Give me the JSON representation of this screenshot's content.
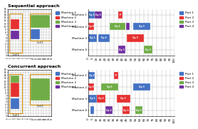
{
  "chart_data": [
    {
      "type": "layout",
      "title": "Sequential approach",
      "xlim": [
        0,
        17
      ],
      "ylim": [
        0,
        16
      ],
      "xticks": [
        0,
        1,
        2,
        3,
        4,
        5,
        6,
        7,
        8,
        9,
        10,
        11,
        12,
        13,
        14,
        15,
        16,
        17
      ],
      "yticks": [
        0,
        1,
        2,
        3,
        4,
        5,
        6,
        7,
        8,
        9,
        10,
        11,
        12,
        13,
        14,
        15,
        16
      ],
      "grid": true,
      "cells": [
        {
          "x": 0.5,
          "y": 1.0,
          "width": 5.0,
          "height": 13.5,
          "color": "#d4900a",
          "label": "Cell 1",
          "label_x": 3.0,
          "label_y": 0.8
        },
        {
          "x": 8.5,
          "y": 5.0,
          "width": 8.5,
          "height": 9.5,
          "color": "#d4900a",
          "label": "Cell 2",
          "label_x": 12.5,
          "label_y": 4.8
        }
      ],
      "boxes": [
        {
          "x": 1.0,
          "y": 9.0,
          "width": 3.5,
          "height": 3.5,
          "color": "#e63030"
        },
        {
          "x": 1.0,
          "y": 5.5,
          "width": 3.5,
          "height": 3.0,
          "color": "#7030a0"
        },
        {
          "x": 9.0,
          "y": 9.5,
          "width": 7.5,
          "height": 4.5,
          "color": "#70ad47"
        },
        {
          "x": 9.0,
          "y": 5.5,
          "width": 3.5,
          "height": 3.5,
          "color": "#4472c4"
        }
      ],
      "series": [
        {
          "name": "Machine 1",
          "color": "#4472c4"
        },
        {
          "name": "Machine 2",
          "color": "#e63030"
        },
        {
          "name": "Machine 3",
          "color": "#70ad47"
        },
        {
          "name": "Machine 4",
          "color": "#7030a0"
        }
      ],
      "legend": "upper left"
    },
    {
      "type": "gantt",
      "orientation": "horizontal",
      "categories": [
        "Machine 4",
        "Machine 3",
        "Machine 2",
        "Machine 1"
      ],
      "xlim": [
        0,
        100
      ],
      "xticks": [
        0,
        5,
        10,
        15,
        20,
        25,
        30,
        35,
        40,
        45,
        50,
        55,
        60,
        65,
        70,
        75,
        80,
        85,
        90,
        95,
        100
      ],
      "grid": true,
      "bars": [
        {
          "category": "Machine 1",
          "start": 0,
          "duration": 8,
          "color": "#4472c4",
          "label": "Op 1"
        },
        {
          "category": "Machine 1",
          "start": 8,
          "duration": 8,
          "color": "#7030a0",
          "label": "Op 1"
        },
        {
          "category": "Machine 1",
          "start": 35,
          "duration": 5,
          "color": "#e63030",
          "label": "P"
        },
        {
          "category": "Machine 2",
          "start": 0,
          "duration": 7,
          "color": "#e63030",
          "label": "Op 0"
        },
        {
          "category": "Machine 2",
          "start": 25,
          "duration": 18,
          "color": "#70ad47",
          "label": "Op 1"
        },
        {
          "category": "Machine 2",
          "start": 44,
          "duration": 4,
          "color": "#7030a0"
        },
        {
          "category": "Machine 2",
          "start": 52,
          "duration": 20,
          "color": "#4472c4",
          "label": "Op 3"
        },
        {
          "category": "Machine 3",
          "start": 0,
          "duration": 10,
          "color": "#4472c4",
          "label": "Op 1"
        },
        {
          "category": "Machine 3",
          "start": 12,
          "duration": 13,
          "color": "#4472c4",
          "label": "Op 2"
        },
        {
          "category": "Machine 3",
          "start": 45,
          "duration": 20,
          "color": "#e63030",
          "label": "Op 3"
        },
        {
          "category": "Machine 4",
          "start": 35,
          "duration": 8,
          "color": "#7030a0",
          "label": "Op 3"
        },
        {
          "category": "Machine 4",
          "start": 65,
          "duration": 10,
          "color": "#70ad47",
          "label": "Op 3"
        }
      ],
      "series": [
        {
          "name": "Part 1",
          "color": "#4472c4"
        },
        {
          "name": "Part 2",
          "color": "#e63030"
        },
        {
          "name": "Part 3",
          "color": "#70ad47"
        },
        {
          "name": "Part 4",
          "color": "#7030a0"
        }
      ],
      "legend": "upper left"
    },
    {
      "type": "layout",
      "title": "Concurrent approach",
      "xlim": [
        0,
        17
      ],
      "ylim": [
        0,
        16
      ],
      "xticks": [
        0,
        1,
        2,
        3,
        4,
        5,
        6,
        7,
        8,
        9,
        10,
        11,
        12,
        13,
        14,
        15,
        16,
        17
      ],
      "yticks": [
        0,
        1,
        2,
        3,
        4,
        5,
        6,
        7,
        8,
        9,
        10,
        11,
        12,
        13,
        14,
        15,
        16
      ],
      "grid": true,
      "cells": [
        {
          "x": 0.5,
          "y": 1.0,
          "width": 5.0,
          "height": 13.5,
          "color": "#d4900a",
          "label": "Cell 1",
          "label_x": 3.0,
          "label_y": 0.8
        },
        {
          "x": 8.5,
          "y": 4.0,
          "width": 8.5,
          "height": 10.5,
          "color": "#d4900a",
          "label": "Cell 2",
          "label_x": 12.5,
          "label_y": 3.8
        }
      ],
      "boxes": [
        {
          "x": 1.0,
          "y": 6.5,
          "width": 3.5,
          "height": 5.0,
          "color": "#e63030"
        },
        {
          "x": 1.0,
          "y": 2.5,
          "width": 3.5,
          "height": 3.5,
          "color": "#4472c4"
        },
        {
          "x": 1.0,
          "y": 11.5,
          "width": 3.5,
          "height": 2.5,
          "color": "#70ad47"
        },
        {
          "x": 9.0,
          "y": 5.5,
          "width": 7.5,
          "height": 7.5,
          "color": "#70ad47"
        }
      ],
      "series": [
        {
          "name": "Machine 1",
          "color": "#4472c4"
        },
        {
          "name": "Machine 2",
          "color": "#e63030"
        },
        {
          "name": "Machine 3",
          "color": "#70ad47"
        },
        {
          "name": "Machine 4",
          "color": "#7030a0"
        }
      ],
      "legend": "upper left"
    },
    {
      "type": "gantt",
      "orientation": "horizontal",
      "categories": [
        "Machine 4",
        "Machine 3",
        "Machine 2",
        "Machine 1"
      ],
      "xlim": [
        0,
        100
      ],
      "xticks": [
        0,
        5,
        10,
        15,
        20,
        25,
        30,
        35,
        40,
        45,
        50,
        55,
        60,
        65,
        70,
        75,
        80,
        85,
        90,
        95,
        100
      ],
      "grid": true,
      "bars": [
        {
          "category": "Machine 1",
          "start": 0,
          "duration": 8,
          "color": "#4472c4",
          "label": "Op 1"
        },
        {
          "category": "Machine 1",
          "start": 30,
          "duration": 5,
          "color": "#e63030",
          "label": "P"
        },
        {
          "category": "Machine 2",
          "start": 0,
          "duration": 7,
          "color": "#e63030",
          "label": "Op 0"
        },
        {
          "category": "Machine 2",
          "start": 15,
          "duration": 20,
          "color": "#70ad47",
          "label": "Op 1"
        },
        {
          "category": "Machine 2",
          "start": 52,
          "duration": 20,
          "color": "#4472c4",
          "label": "Op 3"
        },
        {
          "category": "Machine 3",
          "start": 0,
          "duration": 10,
          "color": "#4472c4",
          "label": "Op 1"
        },
        {
          "category": "Machine 3",
          "start": 10,
          "duration": 10,
          "color": "#e63030",
          "label": "Op 2"
        },
        {
          "category": "Machine 3",
          "start": 33,
          "duration": 16,
          "color": "#e63030",
          "label": "Op 3"
        },
        {
          "category": "Machine 4",
          "start": 3,
          "duration": 4,
          "color": "#4472c4"
        },
        {
          "category": "Machine 4",
          "start": 20,
          "duration": 8,
          "color": "#7030a0",
          "label": "Op 2"
        },
        {
          "category": "Machine 4",
          "start": 40,
          "duration": 8,
          "color": "#e63030",
          "label": "Op 1"
        },
        {
          "category": "Machine 4",
          "start": 55,
          "duration": 8,
          "color": "#70ad47",
          "label": "Op 3"
        }
      ],
      "series": [
        {
          "name": "Part 1",
          "color": "#4472c4"
        },
        {
          "name": "Part 2",
          "color": "#e63030"
        },
        {
          "name": "Part 3",
          "color": "#70ad47"
        },
        {
          "name": "Part 4",
          "color": "#7030a0"
        }
      ],
      "legend": "upper left"
    }
  ]
}
